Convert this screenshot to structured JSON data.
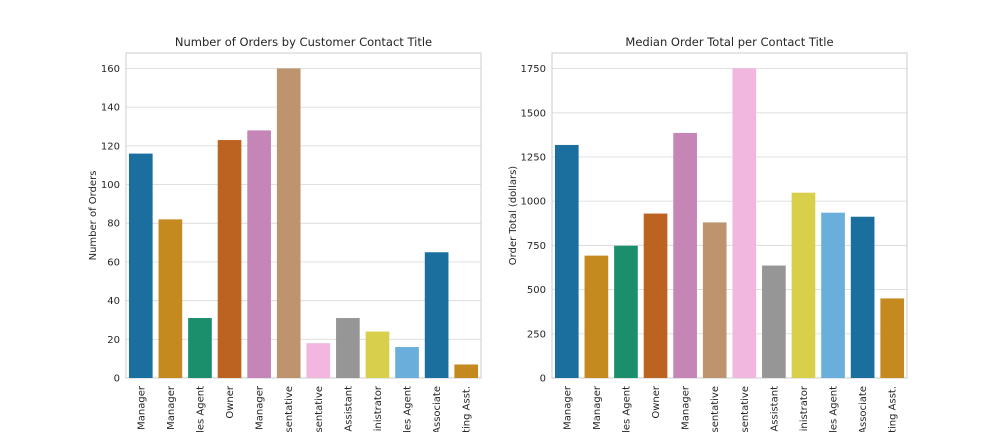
{
  "chart_data": [
    {
      "type": "bar",
      "title": "Number of Orders by Customer Contact Title",
      "xlabel": "",
      "ylabel": "Number of Orders",
      "ylim": [
        0,
        168
      ],
      "yticks": [
        0,
        20,
        40,
        60,
        80,
        100,
        120,
        140,
        160
      ],
      "grid": true,
      "categories": [
        "g Manager",
        "g Manager",
        "ales Agent",
        "Owner",
        "s Manager",
        "esentative",
        "esentative",
        "g Assistant",
        "ministrator",
        "ales Agent",
        "Associate",
        "eting Asst."
      ],
      "values": [
        116,
        82,
        31,
        123,
        128,
        160,
        18,
        31,
        24,
        16,
        65,
        7
      ],
      "colors": [
        "#1a6f9f",
        "#c58a1f",
        "#1b8e6c",
        "#bc6321",
        "#c585b7",
        "#be946f",
        "#f2b7df",
        "#969696",
        "#d8cf4a",
        "#6aafdb",
        "#1a6f9f",
        "#c58a1f"
      ]
    },
    {
      "type": "bar",
      "title": "Median Order Total per Contact Title",
      "xlabel": "",
      "ylabel": "Order Total (dollars)",
      "ylim": [
        0,
        1838
      ],
      "yticks": [
        0,
        250,
        500,
        750,
        1000,
        1250,
        1500,
        1750
      ],
      "grid": true,
      "categories": [
        "g Manager",
        "g Manager",
        "ales Agent",
        "Owner",
        "s Manager",
        "esentative",
        "esentative",
        "g Assistant",
        "ministrator",
        "ales Agent",
        "Associate",
        "eting Asst."
      ],
      "values": [
        1318,
        692,
        748,
        930,
        1386,
        880,
        1752,
        636,
        1048,
        935,
        912,
        450
      ],
      "colors": [
        "#1a6f9f",
        "#c58a1f",
        "#1b8e6c",
        "#bc6321",
        "#c585b7",
        "#be946f",
        "#f2b7df",
        "#969696",
        "#d8cf4a",
        "#6aafdb",
        "#1a6f9f",
        "#c58a1f"
      ]
    }
  ]
}
